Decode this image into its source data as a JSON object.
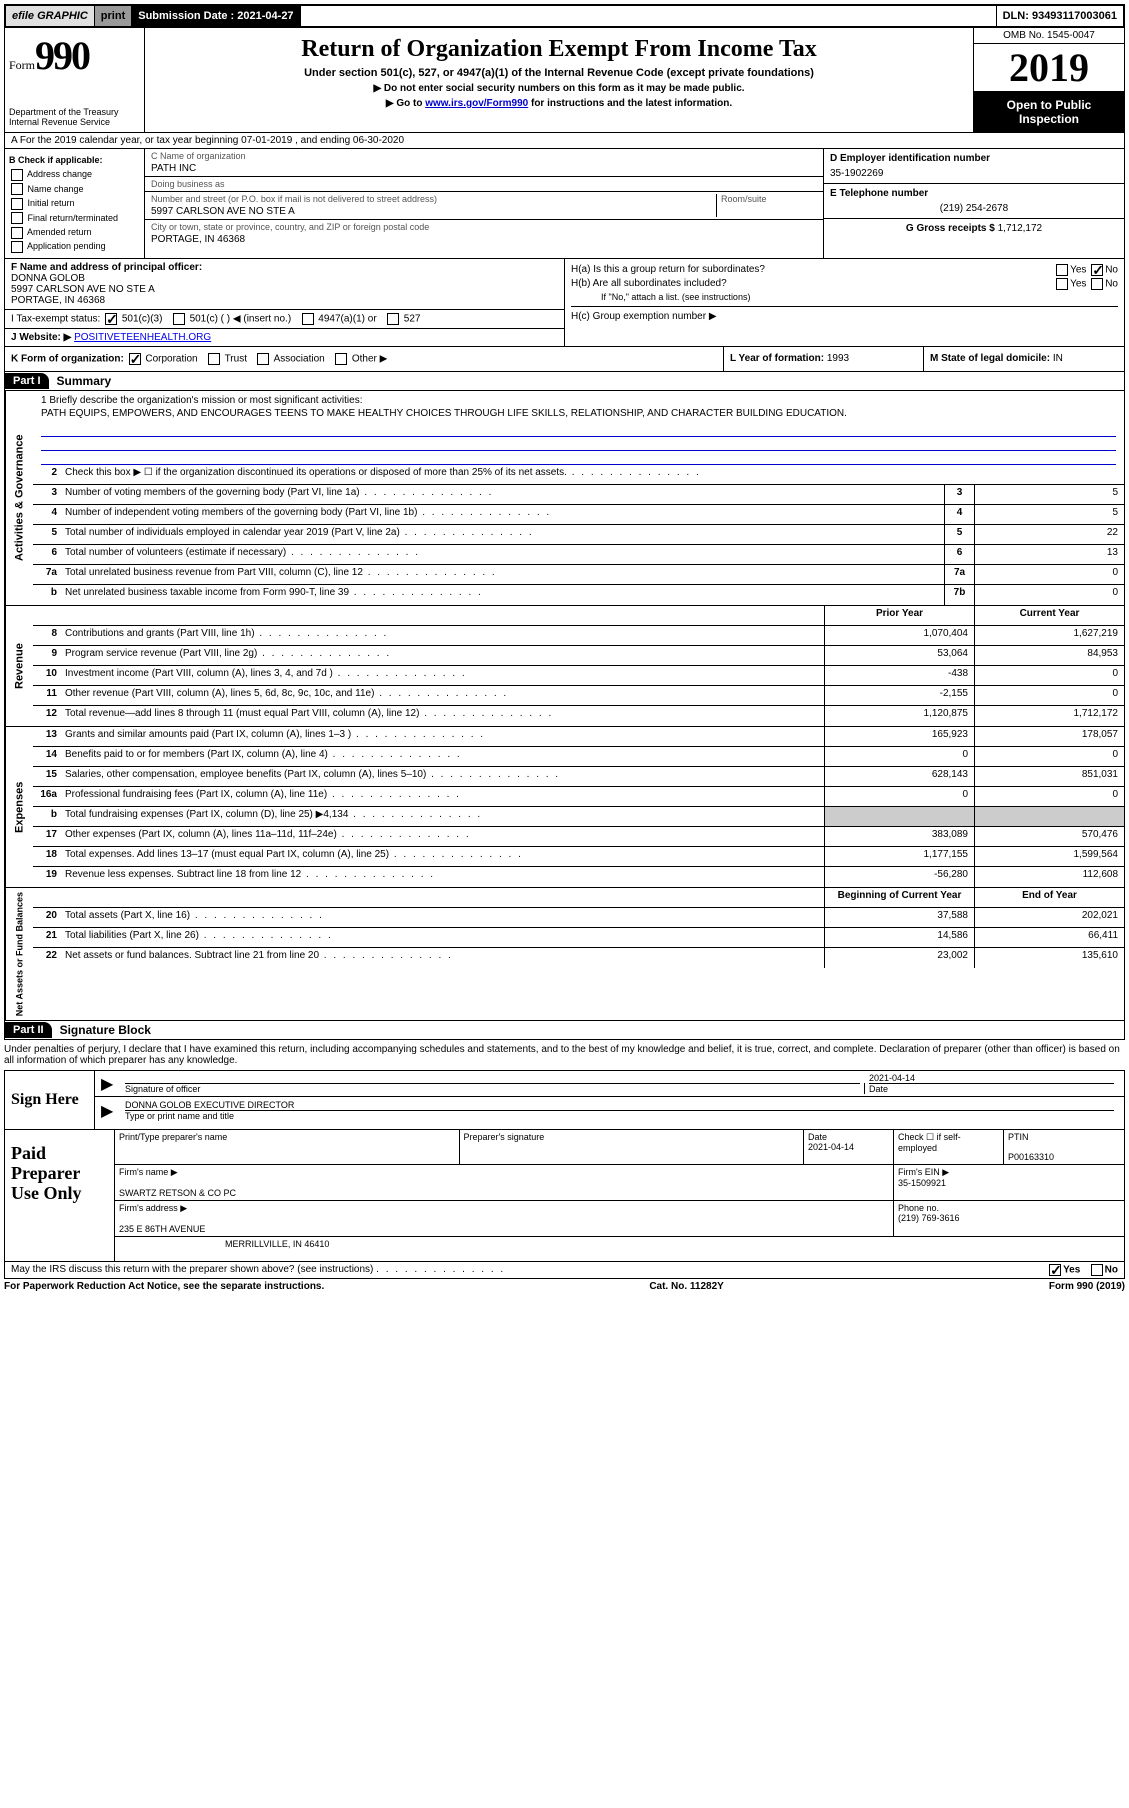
{
  "topbar": {
    "efile": "efile GRAPHIC",
    "print": "print",
    "submission_label": "Submission Date :",
    "submission_date": "2021-04-27",
    "dln_label": "DLN:",
    "dln": "93493117003061"
  },
  "header": {
    "form_word": "Form",
    "form_num": "990",
    "dept": "Department of the Treasury\nInternal Revenue Service",
    "title": "Return of Organization Exempt From Income Tax",
    "sub": "Under section 501(c), 527, or 4947(a)(1) of the Internal Revenue Code (except private foundations)",
    "note1": "▶ Do not enter social security numbers on this form as it may be made public.",
    "note2_pre": "▶ Go to ",
    "note2_link": "www.irs.gov/Form990",
    "note2_post": " for instructions and the latest information.",
    "omb": "OMB No. 1545-0047",
    "year": "2019",
    "open": "Open to Public Inspection"
  },
  "row_a": "A For the 2019 calendar year, or tax year beginning 07-01-2019   , and ending 06-30-2020",
  "col_b": {
    "title": "B Check if applicable:",
    "items": [
      "Address change",
      "Name change",
      "Initial return",
      "Final return/terminated",
      "Amended return",
      "Application pending"
    ]
  },
  "box_c": {
    "name_label": "C Name of organization",
    "name": "PATH INC",
    "dba_label": "Doing business as",
    "dba": "",
    "addr_label": "Number and street (or P.O. box if mail is not delivered to street address)",
    "room_label": "Room/suite",
    "addr": "5997 CARLSON AVE NO STE A",
    "city_label": "City or town, state or province, country, and ZIP or foreign postal code",
    "city": "PORTAGE, IN  46368"
  },
  "box_d": {
    "label": "D Employer identification number",
    "val": "35-1902269"
  },
  "box_e": {
    "label": "E Telephone number",
    "val": "(219) 254-2678"
  },
  "box_g": {
    "label": "G Gross receipts $",
    "val": "1,712,172"
  },
  "box_f": {
    "label": "F  Name and address of principal officer:",
    "name": "DONNA GOLOB",
    "addr1": "5997 CARLSON AVE NO STE A",
    "addr2": "PORTAGE, IN  46368"
  },
  "box_h": {
    "a": "H(a)  Is this a group return for subordinates?",
    "b": "H(b)  Are all subordinates included?",
    "b_note": "If \"No,\" attach a list. (see instructions)",
    "c": "H(c)  Group exemption number ▶"
  },
  "tax_status": {
    "label": "I   Tax-exempt status:",
    "opts": [
      "501(c)(3)",
      "501(c) (  ) ◀ (insert no.)",
      "4947(a)(1) or",
      "527"
    ]
  },
  "website": {
    "label": "J   Website: ▶",
    "val": "POSITIVETEENHEALTH.ORG"
  },
  "row_k": {
    "k": "K Form of organization:",
    "opts": [
      "Corporation",
      "Trust",
      "Association",
      "Other ▶"
    ],
    "l_label": "L Year of formation:",
    "l_val": "1993",
    "m_label": "M State of legal domicile:",
    "m_val": "IN"
  },
  "part1": {
    "num": "Part I",
    "title": "Summary"
  },
  "mission": {
    "q": "1  Briefly describe the organization's mission or most significant activities:",
    "text": "PATH EQUIPS, EMPOWERS, AND ENCOURAGES TEENS TO MAKE HEALTHY CHOICES THROUGH LIFE SKILLS, RELATIONSHIP, AND CHARACTER BUILDING EDUCATION."
  },
  "gov_lines": [
    {
      "n": "2",
      "t": "Check this box ▶ ☐  if the organization discontinued its operations or disposed of more than 25% of its net assets.",
      "box": "",
      "v": ""
    },
    {
      "n": "3",
      "t": "Number of voting members of the governing body (Part VI, line 1a)",
      "box": "3",
      "v": "5"
    },
    {
      "n": "4",
      "t": "Number of independent voting members of the governing body (Part VI, line 1b)",
      "box": "4",
      "v": "5"
    },
    {
      "n": "5",
      "t": "Total number of individuals employed in calendar year 2019 (Part V, line 2a)",
      "box": "5",
      "v": "22"
    },
    {
      "n": "6",
      "t": "Total number of volunteers (estimate if necessary)",
      "box": "6",
      "v": "13"
    },
    {
      "n": "7a",
      "t": "Total unrelated business revenue from Part VIII, column (C), line 12",
      "box": "7a",
      "v": "0"
    },
    {
      "n": "b",
      "t": "Net unrelated business taxable income from Form 990-T, line 39",
      "box": "7b",
      "v": "0"
    }
  ],
  "col_hdrs": {
    "prior": "Prior Year",
    "curr": "Current Year"
  },
  "rev_lines": [
    {
      "n": "8",
      "t": "Contributions and grants (Part VIII, line 1h)",
      "p": "1,070,404",
      "c": "1,627,219"
    },
    {
      "n": "9",
      "t": "Program service revenue (Part VIII, line 2g)",
      "p": "53,064",
      "c": "84,953"
    },
    {
      "n": "10",
      "t": "Investment income (Part VIII, column (A), lines 3, 4, and 7d )",
      "p": "-438",
      "c": "0"
    },
    {
      "n": "11",
      "t": "Other revenue (Part VIII, column (A), lines 5, 6d, 8c, 9c, 10c, and 11e)",
      "p": "-2,155",
      "c": "0"
    },
    {
      "n": "12",
      "t": "Total revenue—add lines 8 through 11 (must equal Part VIII, column (A), line 12)",
      "p": "1,120,875",
      "c": "1,712,172"
    }
  ],
  "exp_lines": [
    {
      "n": "13",
      "t": "Grants and similar amounts paid (Part IX, column (A), lines 1–3 )",
      "p": "165,923",
      "c": "178,057"
    },
    {
      "n": "14",
      "t": "Benefits paid to or for members (Part IX, column (A), line 4)",
      "p": "0",
      "c": "0"
    },
    {
      "n": "15",
      "t": "Salaries, other compensation, employee benefits (Part IX, column (A), lines 5–10)",
      "p": "628,143",
      "c": "851,031"
    },
    {
      "n": "16a",
      "t": "Professional fundraising fees (Part IX, column (A), line 11e)",
      "p": "0",
      "c": "0"
    },
    {
      "n": "b",
      "t": "Total fundraising expenses (Part IX, column (D), line 25) ▶4,134",
      "p": "SHADE",
      "c": "SHADE"
    },
    {
      "n": "17",
      "t": "Other expenses (Part IX, column (A), lines 11a–11d, 11f–24e)",
      "p": "383,089",
      "c": "570,476"
    },
    {
      "n": "18",
      "t": "Total expenses. Add lines 13–17 (must equal Part IX, column (A), line 25)",
      "p": "1,177,155",
      "c": "1,599,564"
    },
    {
      "n": "19",
      "t": "Revenue less expenses. Subtract line 18 from line 12",
      "p": "-56,280",
      "c": "112,608"
    }
  ],
  "net_hdrs": {
    "beg": "Beginning of Current Year",
    "end": "End of Year"
  },
  "net_lines": [
    {
      "n": "20",
      "t": "Total assets (Part X, line 16)",
      "p": "37,588",
      "c": "202,021"
    },
    {
      "n": "21",
      "t": "Total liabilities (Part X, line 26)",
      "p": "14,586",
      "c": "66,411"
    },
    {
      "n": "22",
      "t": "Net assets or fund balances. Subtract line 21 from line 20",
      "p": "23,002",
      "c": "135,610"
    }
  ],
  "part2": {
    "num": "Part II",
    "title": "Signature Block"
  },
  "sig_intro": "Under penalties of perjury, I declare that I have examined this return, including accompanying schedules and statements, and to the best of my knowledge and belief, it is true, correct, and complete. Declaration of preparer (other than officer) is based on all information of which preparer has any knowledge.",
  "sign": {
    "left": "Sign Here",
    "sig_label": "Signature of officer",
    "date_label": "Date",
    "date": "2021-04-14",
    "name": "DONNA GOLOB  EXECUTIVE DIRECTOR",
    "name_label": "Type or print name and title"
  },
  "prep": {
    "left": "Paid Preparer Use Only",
    "r1": {
      "c1": "Print/Type preparer's name",
      "c2": "Preparer's signature",
      "c3": "Date",
      "c3v": "2021-04-14",
      "c4": "Check ☐ if self-employed",
      "c5": "PTIN",
      "c5v": "P00163310"
    },
    "r2": {
      "label": "Firm's name    ▶",
      "val": "SWARTZ RETSON & CO PC",
      "ein_label": "Firm's EIN ▶",
      "ein": "35-1509921"
    },
    "r3": {
      "label": "Firm's address ▶",
      "val": "235 E 86TH AVENUE",
      "ph_label": "Phone no.",
      "ph": "(219) 769-3616"
    },
    "r4": {
      "city": "MERRILLVILLE, IN  46410"
    }
  },
  "discuss": "May the IRS discuss this return with the preparer shown above? (see instructions)",
  "footer": {
    "left": "For Paperwork Reduction Act Notice, see the separate instructions.",
    "mid": "Cat. No. 11282Y",
    "right": "Form 990 (2019)"
  },
  "vtabs": {
    "gov": "Activities & Governance",
    "rev": "Revenue",
    "exp": "Expenses",
    "net": "Net Assets or Fund Balances"
  }
}
